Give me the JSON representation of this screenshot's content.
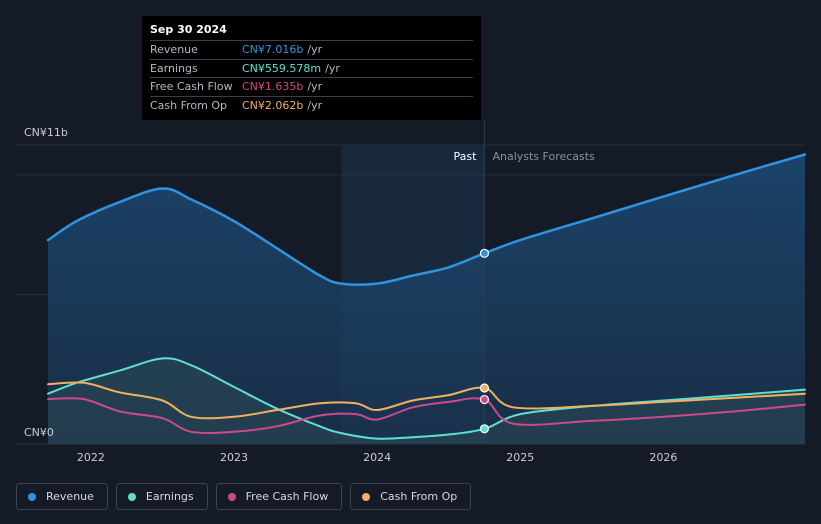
{
  "chart_data": {
    "type": "line",
    "y_axis": {
      "top_label": "CN¥11b",
      "bottom_label": "CN¥0",
      "ylim": [
        0,
        11
      ]
    },
    "x_axis": {
      "tick_labels": [
        "2022",
        "2023",
        "2024",
        "2025",
        "2026"
      ],
      "ticks": [
        2022,
        2023,
        2024,
        2025,
        2026
      ],
      "xlim": [
        2021.7,
        2026.99
      ]
    },
    "divider": {
      "x": 2024.75,
      "past_label": "Past",
      "forecast_label": "Analysts Forecasts"
    },
    "highlight_region": [
      2023.75,
      2024.75
    ],
    "series": [
      {
        "name": "Revenue",
        "color": "#2f93e0",
        "filled": true,
        "points": [
          [
            2021.7,
            7.5
          ],
          [
            2021.9,
            8.2
          ],
          [
            2022.2,
            8.9
          ],
          [
            2022.5,
            9.4
          ],
          [
            2022.7,
            9.0
          ],
          [
            2023.0,
            8.2
          ],
          [
            2023.3,
            7.2
          ],
          [
            2023.6,
            6.2
          ],
          [
            2023.75,
            5.9
          ],
          [
            2024.0,
            5.9
          ],
          [
            2024.25,
            6.2
          ],
          [
            2024.5,
            6.5
          ],
          [
            2024.75,
            7.016
          ],
          [
            2025.0,
            7.5
          ],
          [
            2025.5,
            8.3
          ],
          [
            2026.0,
            9.1
          ],
          [
            2026.5,
            9.9
          ],
          [
            2026.99,
            10.65
          ]
        ]
      },
      {
        "name": "Earnings",
        "color": "#5de0cf",
        "filled": true,
        "points": [
          [
            2021.7,
            1.85
          ],
          [
            2021.9,
            2.25
          ],
          [
            2022.2,
            2.7
          ],
          [
            2022.5,
            3.15
          ],
          [
            2022.7,
            2.9
          ],
          [
            2023.0,
            2.1
          ],
          [
            2023.3,
            1.3
          ],
          [
            2023.6,
            0.65
          ],
          [
            2023.75,
            0.4
          ],
          [
            2024.0,
            0.2
          ],
          [
            2024.25,
            0.25
          ],
          [
            2024.5,
            0.35
          ],
          [
            2024.75,
            0.559578
          ],
          [
            2025.0,
            1.1
          ],
          [
            2025.5,
            1.4
          ],
          [
            2026.0,
            1.6
          ],
          [
            2026.5,
            1.8
          ],
          [
            2026.99,
            2.0
          ]
        ]
      },
      {
        "name": "Free Cash Flow",
        "color": "#cc4a8b",
        "filled": false,
        "points": [
          [
            2021.7,
            1.65
          ],
          [
            2021.95,
            1.65
          ],
          [
            2022.2,
            1.2
          ],
          [
            2022.5,
            0.95
          ],
          [
            2022.7,
            0.45
          ],
          [
            2023.0,
            0.45
          ],
          [
            2023.3,
            0.65
          ],
          [
            2023.6,
            1.05
          ],
          [
            2023.85,
            1.1
          ],
          [
            2024.0,
            0.9
          ],
          [
            2024.25,
            1.35
          ],
          [
            2024.5,
            1.55
          ],
          [
            2024.75,
            1.635
          ],
          [
            2024.95,
            0.75
          ],
          [
            2025.5,
            0.85
          ],
          [
            2026.0,
            1.0
          ],
          [
            2026.5,
            1.2
          ],
          [
            2026.99,
            1.45
          ]
        ]
      },
      {
        "name": "Cash From Op",
        "color": "#f0b060",
        "filled": false,
        "points": [
          [
            2021.7,
            2.2
          ],
          [
            2021.95,
            2.25
          ],
          [
            2022.2,
            1.9
          ],
          [
            2022.5,
            1.6
          ],
          [
            2022.7,
            1.0
          ],
          [
            2023.0,
            1.0
          ],
          [
            2023.3,
            1.25
          ],
          [
            2023.6,
            1.5
          ],
          [
            2023.85,
            1.5
          ],
          [
            2024.0,
            1.25
          ],
          [
            2024.25,
            1.6
          ],
          [
            2024.5,
            1.8
          ],
          [
            2024.75,
            2.062
          ],
          [
            2024.95,
            1.35
          ],
          [
            2025.5,
            1.4
          ],
          [
            2026.0,
            1.55
          ],
          [
            2026.5,
            1.7
          ],
          [
            2026.99,
            1.85
          ]
        ]
      }
    ]
  },
  "tooltip": {
    "date": "Sep 30 2024",
    "rows": [
      {
        "label": "Revenue",
        "value": "CN¥7.016b",
        "unit": "/yr",
        "color": "#2f93e0"
      },
      {
        "label": "Earnings",
        "value": "CN¥559.578m",
        "unit": "/yr",
        "color": "#5de0cf"
      },
      {
        "label": "Free Cash Flow",
        "value": "CN¥1.635b",
        "unit": "/yr",
        "color": "#cc4a8b"
      },
      {
        "label": "Cash From Op",
        "value": "CN¥2.062b",
        "unit": "/yr",
        "color": "#f0b060"
      }
    ]
  },
  "legend": [
    {
      "label": "Revenue",
      "color": "#2f93e0"
    },
    {
      "label": "Earnings",
      "color": "#5de0cf"
    },
    {
      "label": "Free Cash Flow",
      "color": "#cc4a8b"
    },
    {
      "label": "Cash From Op",
      "color": "#f0b060"
    }
  ]
}
